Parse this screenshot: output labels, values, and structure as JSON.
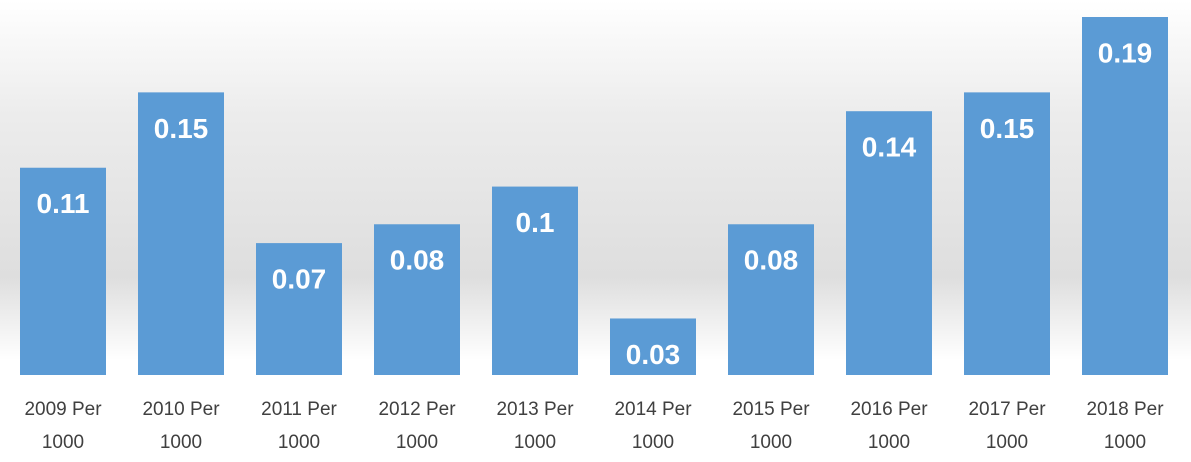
{
  "chart_data": {
    "type": "bar",
    "categories": [
      "2009 Per 1000",
      "2010 Per 1000",
      "2011 Per 1000",
      "2012 Per 1000",
      "2013 Per 1000",
      "2014 Per 1000",
      "2015 Per 1000",
      "2016 Per 1000",
      "2017 Per 1000",
      "2018 Per 1000"
    ],
    "values": [
      0.11,
      0.15,
      0.07,
      0.08,
      0.1,
      0.03,
      0.08,
      0.14,
      0.15,
      0.19
    ],
    "color": "#5b9bd5"
  }
}
